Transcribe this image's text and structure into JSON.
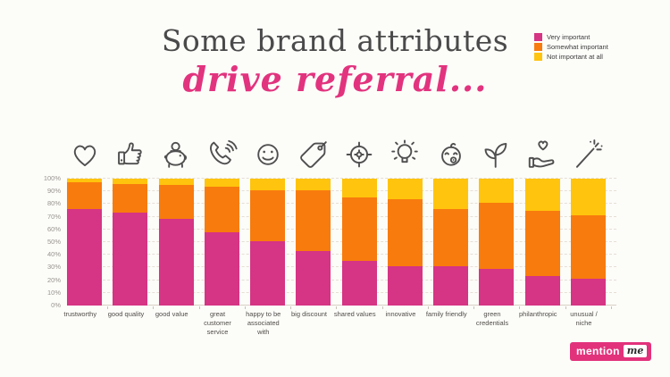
{
  "title": {
    "line1": "Some brand attributes",
    "line2": "drive referral..."
  },
  "legend": [
    {
      "label": "Very important",
      "color": "#D63484"
    },
    {
      "label": "Somewhat important",
      "color": "#F87B0D"
    },
    {
      "label": "Not important at all",
      "color": "#FFC40D"
    }
  ],
  "logo": {
    "part1": "mention",
    "part2": "me"
  },
  "colors": {
    "background": "#FCFCF9",
    "title_gray": "#4A4A4A",
    "title_pink": "#E2337E",
    "icon_gray": "#4F4F4F"
  },
  "chart_data": {
    "type": "bar",
    "stacked": true,
    "title": "Some brand attributes drive referral...",
    "ylim": [
      0,
      100
    ],
    "grid": true,
    "legend_position": "top-right",
    "yticks": [
      "0%",
      "10%",
      "20%",
      "30%",
      "40%",
      "50%",
      "60%",
      "70%",
      "80%",
      "90%",
      "100%"
    ],
    "categories": [
      "trustworthy",
      "good quality",
      "good value",
      "great customer service",
      "happy to be associated with",
      "big discount",
      "shared values",
      "innovative",
      "family friendly",
      "green credentials",
      "philanthropic",
      "unusual / niche"
    ],
    "icons": [
      "heart",
      "thumbs-up",
      "piggy-bank",
      "phone",
      "smiley",
      "price-tag",
      "target",
      "lightbulb",
      "baby",
      "seedling",
      "hand-heart",
      "magic-wand"
    ],
    "series": [
      {
        "name": "Very important",
        "color": "#D63484",
        "values": [
          76,
          73,
          68,
          58,
          51,
          43,
          35,
          31,
          31,
          29,
          23,
          21
        ]
      },
      {
        "name": "Somewhat important",
        "color": "#F87B0D",
        "values": [
          21,
          23,
          27,
          36,
          40,
          48,
          50,
          53,
          45,
          52,
          52,
          50
        ]
      },
      {
        "name": "Not important at all",
        "color": "#FFC40D",
        "values": [
          3,
          4,
          5,
          6,
          9,
          9,
          15,
          16,
          24,
          19,
          25,
          29
        ]
      }
    ]
  }
}
